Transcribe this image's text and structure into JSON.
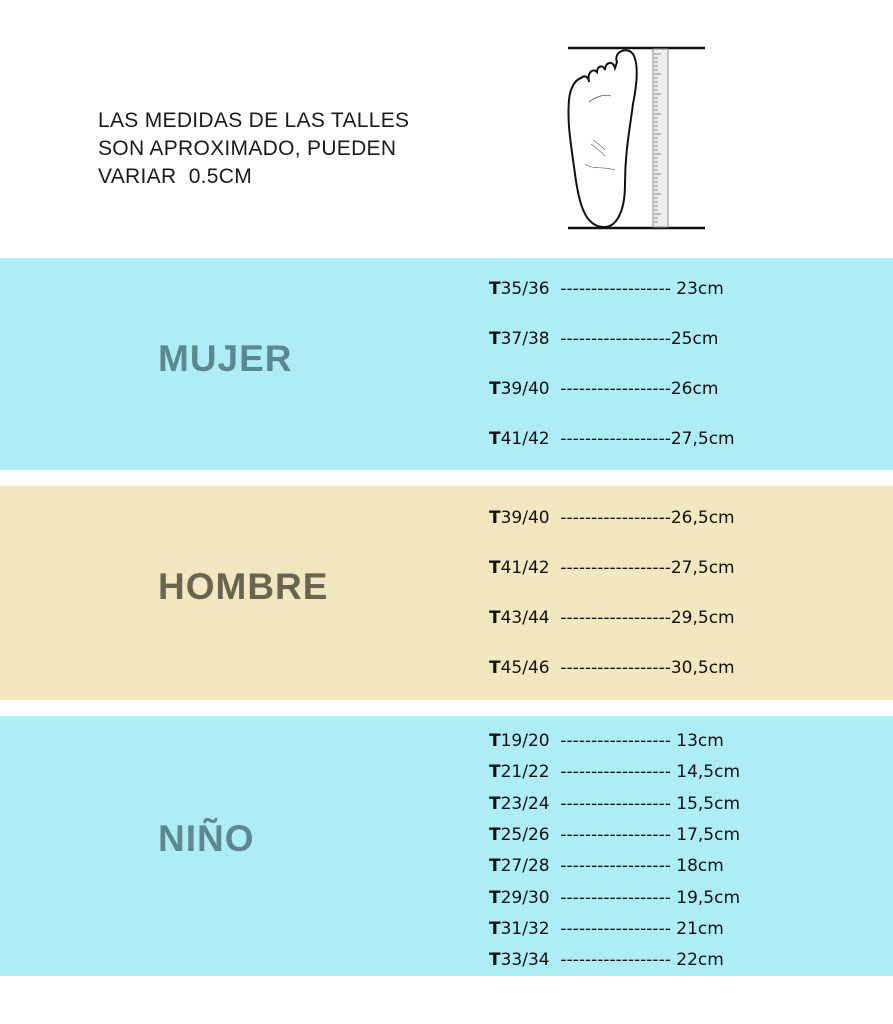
{
  "note": {
    "lines": [
      "LAS MEDIDAS DE LAS TALLES",
      "SON APROXIMADO, PUEDEN",
      "VARIAR  0.5CM"
    ]
  },
  "illustration": {
    "icon": "foot-with-ruler-icon"
  },
  "colors": {
    "cyan_band": "#aeedf6",
    "beige_band": "#f3e7bf",
    "mujer_heading": "#5e8890",
    "hombre_heading": "#6a6550",
    "nino_heading": "#5e8890"
  },
  "sections": [
    {
      "title": "MUJER",
      "rows": [
        {
          "prefix": "T",
          "size": "35/36",
          "dashes": "  ------------------ ",
          "value": "23cm"
        },
        {
          "prefix": "T",
          "size": "37/38",
          "dashes": "  ------------------",
          "value": "25cm"
        },
        {
          "prefix": "T",
          "size": "39/40",
          "dashes": "  ------------------",
          "value": "26cm"
        },
        {
          "prefix": "T",
          "size": "41/42",
          "dashes": "  ------------------",
          "value": "27,5cm"
        }
      ]
    },
    {
      "title": "HOMBRE",
      "rows": [
        {
          "prefix": "T",
          "size": "39/40",
          "dashes": "  ------------------",
          "value": "26,5cm"
        },
        {
          "prefix": "T",
          "size": "41/42",
          "dashes": "  ------------------",
          "value": "27,5cm"
        },
        {
          "prefix": "T",
          "size": "43/44",
          "dashes": "  ------------------",
          "value": "29,5cm"
        },
        {
          "prefix": "T",
          "size": "45/46",
          "dashes": "  ------------------",
          "value": "30,5cm"
        }
      ]
    },
    {
      "title": "NIÑO",
      "rows": [
        {
          "prefix": "T",
          "size": "19/20",
          "dashes": "  ------------------ ",
          "value": "13cm"
        },
        {
          "prefix": "T",
          "size": "21/22",
          "dashes": "  ------------------ ",
          "value": "14,5cm"
        },
        {
          "prefix": "T",
          "size": "23/24",
          "dashes": "  ------------------ ",
          "value": "15,5cm"
        },
        {
          "prefix": "T",
          "size": "25/26",
          "dashes": "  ------------------ ",
          "value": "17,5cm"
        },
        {
          "prefix": "T",
          "size": "27/28",
          "dashes": "  ------------------ ",
          "value": "18cm"
        },
        {
          "prefix": "T",
          "size": "29/30",
          "dashes": "  ------------------ ",
          "value": "19,5cm"
        },
        {
          "prefix": "T",
          "size": "31/32",
          "dashes": "  ------------------ ",
          "value": "21cm"
        },
        {
          "prefix": "T",
          "size": "33/34",
          "dashes": "  ------------------ ",
          "value": "22cm"
        }
      ]
    }
  ]
}
